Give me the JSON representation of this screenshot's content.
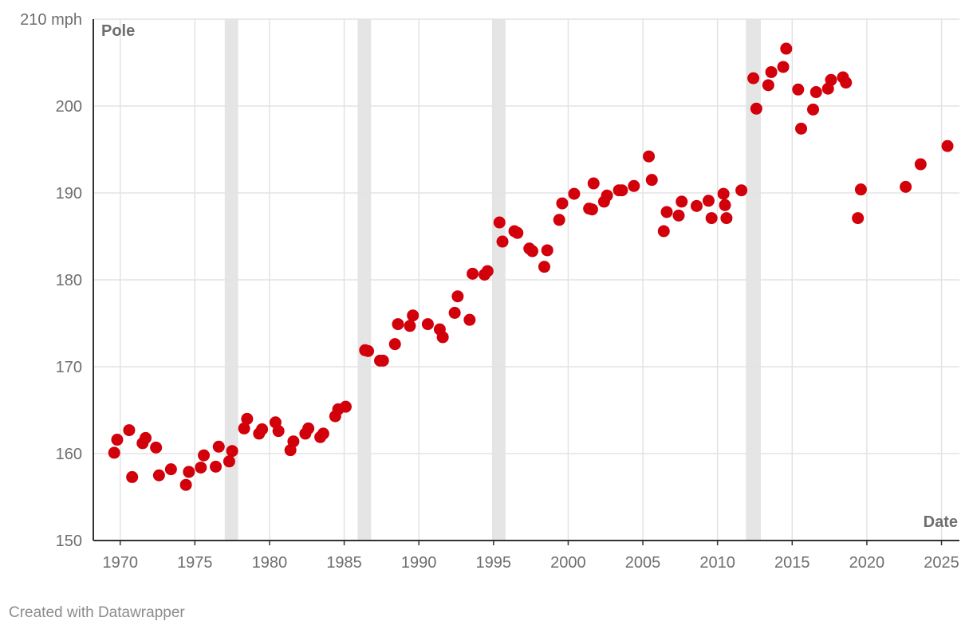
{
  "footer": "Created with Datawrapper",
  "colors": {
    "point": "#d1000a",
    "grid": "#e3e3e3",
    "band": "#e5e5e5",
    "axis": "#333333",
    "text": "#6e6e6e"
  },
  "chart_data": {
    "type": "scatter",
    "title": "",
    "xlabel": "Date",
    "ylabel": "Pole",
    "xlim": [
      1968.2,
      2026.2
    ],
    "ylim": [
      150,
      210
    ],
    "x_ticks": [
      1970,
      1975,
      1980,
      1985,
      1990,
      1995,
      2000,
      2005,
      2010,
      2015,
      2020,
      2025
    ],
    "x_tick_labels": [
      "1970",
      "1975",
      "1980",
      "1985",
      "1990",
      "1995",
      "2000",
      "2005",
      "2010",
      "2015",
      "2020",
      "2025"
    ],
    "y_ticks": [
      150,
      160,
      170,
      180,
      190,
      200,
      210
    ],
    "y_tick_labels": [
      "150",
      "160",
      "170",
      "180",
      "190",
      "200",
      "210 mph"
    ],
    "grid": true,
    "highlight_ranges": [
      [
        1977.0,
        1977.9
      ],
      [
        1985.9,
        1986.8
      ],
      [
        1994.9,
        1995.8
      ],
      [
        2011.9,
        2012.9
      ]
    ],
    "series": [
      {
        "points": [
          [
            1969.6,
            160.1
          ],
          [
            1969.8,
            161.6
          ],
          [
            1970.6,
            162.7
          ],
          [
            1970.8,
            157.3
          ],
          [
            1971.5,
            161.2
          ],
          [
            1971.7,
            161.8
          ],
          [
            1972.4,
            160.7
          ],
          [
            1972.6,
            157.5
          ],
          [
            1973.4,
            158.2
          ],
          [
            1974.4,
            156.4
          ],
          [
            1974.6,
            157.9
          ],
          [
            1975.4,
            158.4
          ],
          [
            1975.6,
            159.8
          ],
          [
            1976.4,
            158.5
          ],
          [
            1976.6,
            160.8
          ],
          [
            1977.3,
            159.1
          ],
          [
            1977.5,
            160.3
          ],
          [
            1978.3,
            162.9
          ],
          [
            1978.5,
            164.0
          ],
          [
            1979.3,
            162.3
          ],
          [
            1979.5,
            162.8
          ],
          [
            1980.4,
            163.6
          ],
          [
            1980.6,
            162.6
          ],
          [
            1981.4,
            160.4
          ],
          [
            1981.6,
            161.4
          ],
          [
            1982.4,
            162.3
          ],
          [
            1982.6,
            162.9
          ],
          [
            1983.4,
            161.9
          ],
          [
            1983.6,
            162.3
          ],
          [
            1984.4,
            164.3
          ],
          [
            1984.6,
            165.1
          ],
          [
            1985.1,
            165.4
          ],
          [
            1986.4,
            171.9
          ],
          [
            1986.6,
            171.8
          ],
          [
            1987.4,
            170.7
          ],
          [
            1987.6,
            170.7
          ],
          [
            1988.4,
            172.6
          ],
          [
            1988.6,
            174.9
          ],
          [
            1989.4,
            174.7
          ],
          [
            1989.6,
            175.9
          ],
          [
            1990.6,
            174.9
          ],
          [
            1991.4,
            174.3
          ],
          [
            1991.6,
            173.4
          ],
          [
            1992.4,
            176.2
          ],
          [
            1992.6,
            178.1
          ],
          [
            1993.4,
            175.4
          ],
          [
            1993.6,
            180.7
          ],
          [
            1994.4,
            180.6
          ],
          [
            1994.6,
            181.0
          ],
          [
            1995.4,
            186.6
          ],
          [
            1995.6,
            184.4
          ],
          [
            1996.4,
            185.6
          ],
          [
            1996.6,
            185.4
          ],
          [
            1997.4,
            183.6
          ],
          [
            1997.6,
            183.3
          ],
          [
            1998.4,
            181.5
          ],
          [
            1998.6,
            183.4
          ],
          [
            1999.4,
            186.9
          ],
          [
            1999.6,
            188.8
          ],
          [
            2000.4,
            189.9
          ],
          [
            2001.4,
            188.2
          ],
          [
            2001.6,
            188.1
          ],
          [
            2001.7,
            191.1
          ],
          [
            2002.4,
            189.0
          ],
          [
            2002.6,
            189.7
          ],
          [
            2003.4,
            190.3
          ],
          [
            2003.6,
            190.3
          ],
          [
            2004.4,
            190.8
          ],
          [
            2005.4,
            194.2
          ],
          [
            2005.6,
            191.5
          ],
          [
            2006.4,
            185.6
          ],
          [
            2006.6,
            187.8
          ],
          [
            2007.4,
            187.4
          ],
          [
            2007.6,
            189.0
          ],
          [
            2008.6,
            188.5
          ],
          [
            2009.4,
            189.1
          ],
          [
            2009.6,
            187.1
          ],
          [
            2010.4,
            189.9
          ],
          [
            2010.5,
            188.6
          ],
          [
            2010.6,
            187.1
          ],
          [
            2011.6,
            190.3
          ],
          [
            2012.4,
            203.2
          ],
          [
            2012.6,
            199.7
          ],
          [
            2013.4,
            202.4
          ],
          [
            2013.6,
            203.9
          ],
          [
            2014.4,
            204.5
          ],
          [
            2014.6,
            206.6
          ],
          [
            2015.4,
            201.9
          ],
          [
            2015.6,
            197.4
          ],
          [
            2016.4,
            199.6
          ],
          [
            2016.6,
            201.6
          ],
          [
            2017.4,
            202.0
          ],
          [
            2017.6,
            203.0
          ],
          [
            2018.4,
            203.3
          ],
          [
            2018.6,
            202.7
          ],
          [
            2019.4,
            187.1
          ],
          [
            2019.6,
            190.4
          ],
          [
            2022.6,
            190.7
          ],
          [
            2023.6,
            193.3
          ],
          [
            2025.4,
            195.4
          ]
        ]
      }
    ]
  }
}
